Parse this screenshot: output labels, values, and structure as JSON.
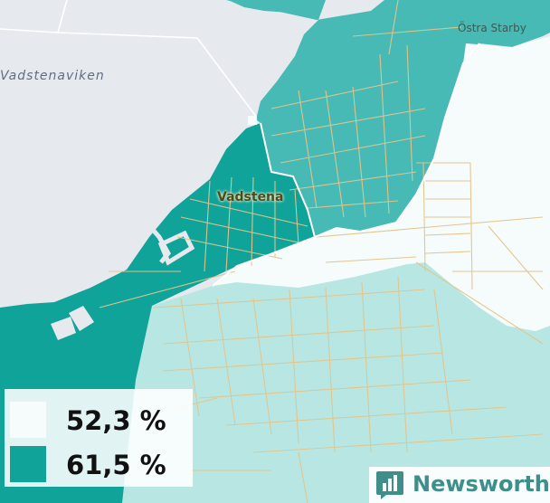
{
  "colors": {
    "water": "#e6e9ee",
    "low": "#f6fbfb",
    "high": "#0fa399",
    "mid": "#47bab5",
    "light": "#b8e7e3",
    "road": "#e2c58c",
    "border": "#ffffff",
    "brand": "#3e8e8a"
  },
  "places": {
    "water_name": "Vadstenaviken",
    "town_name": "Vadstena",
    "village_name": "Östra Starby"
  },
  "legend": {
    "items": [
      {
        "label": "52,3 %",
        "color": "#f6fbfb"
      },
      {
        "label": "61,5 %",
        "color": "#0fa399"
      }
    ]
  },
  "brand": {
    "name": "Newsworthy",
    "icon": "bar-chart-icon"
  }
}
